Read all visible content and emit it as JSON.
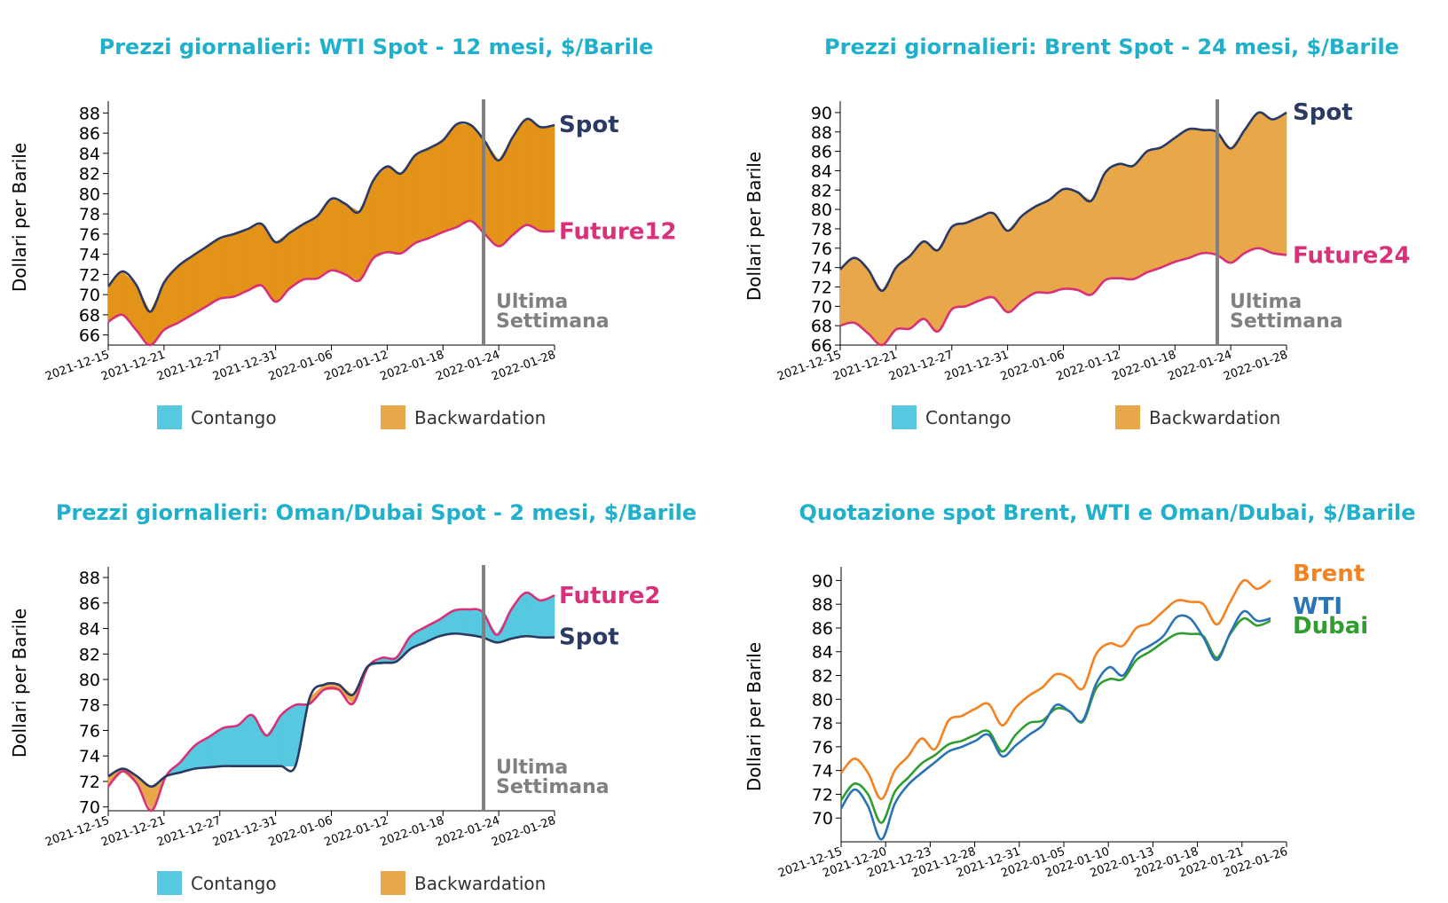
{
  "colors": {
    "title": "#1fb0cc",
    "spot": "#2b3a63",
    "future": "#d9307a",
    "contango": "#56c8df",
    "backwardation": "#e8a84a",
    "fill_backwardation_dark": "#e39318",
    "week_line": "#808080",
    "brent": "#f5821f",
    "wti": "#2a74b5",
    "dubai": "#2f9e2f"
  },
  "legend": {
    "contango": "Contango",
    "backwardation": "Backwardation"
  },
  "chart_data": [
    {
      "type": "area",
      "title": "Prezzi giornalieri: WTI Spot - 12 mesi, $/Barile",
      "ylabel": "Dollari per Barile",
      "ylim": [
        65,
        89
      ],
      "yticks": [
        66,
        68,
        70,
        72,
        74,
        76,
        78,
        80,
        82,
        84,
        86,
        88
      ],
      "xticks": [
        "2021-12-15",
        "2021-12-21",
        "2021-12-27",
        "2021-12-31",
        "2022-01-06",
        "2022-01-12",
        "2022-01-18",
        "2022-01-24",
        "2022-01-28"
      ],
      "week_label": [
        "Ultima",
        "Settimana"
      ],
      "fill_style": "dark",
      "series": [
        {
          "name": "Spot",
          "values": [
            70.8,
            72.3,
            71.0,
            68.3,
            71.2,
            72.8,
            73.8,
            74.7,
            75.6,
            76.0,
            76.5,
            77.0,
            75.2,
            76.1,
            77.0,
            77.8,
            79.5,
            79.0,
            78.2,
            81.3,
            82.7,
            82.0,
            83.8,
            84.5,
            85.3,
            86.9,
            86.8,
            85.2,
            83.3,
            85.6,
            87.4,
            86.6,
            86.8
          ]
        },
        {
          "name": "Future12",
          "values": [
            67.3,
            68.0,
            66.5,
            65.0,
            66.5,
            67.2,
            68.0,
            68.8,
            69.6,
            69.8,
            70.4,
            70.9,
            69.3,
            70.6,
            71.5,
            71.6,
            72.4,
            72.0,
            71.4,
            73.6,
            74.2,
            74.1,
            75.1,
            75.6,
            76.2,
            76.7,
            77.3,
            76.0,
            74.8,
            75.9,
            76.9,
            76.3,
            76.3
          ]
        }
      ]
    },
    {
      "type": "area",
      "title": "Prezzi giornalieri: Brent Spot - 24 mesi, $/Barile",
      "ylabel": "Dollari per Barile",
      "ylim": [
        66,
        91
      ],
      "yticks": [
        66,
        68,
        70,
        72,
        74,
        76,
        78,
        80,
        82,
        84,
        86,
        88,
        90
      ],
      "xticks": [
        "2021-12-15",
        "2021-12-21",
        "2021-12-27",
        "2021-12-31",
        "2022-01-06",
        "2022-01-12",
        "2022-01-18",
        "2022-01-24",
        "2022-01-28"
      ],
      "week_label": [
        "Ultima",
        "Settimana"
      ],
      "fill_style": "light",
      "series": [
        {
          "name": "Spot",
          "values": [
            73.8,
            75.0,
            73.8,
            71.6,
            74.0,
            75.2,
            76.7,
            75.8,
            78.2,
            78.6,
            79.2,
            79.6,
            77.8,
            79.3,
            80.3,
            81.0,
            82.1,
            81.8,
            80.9,
            83.8,
            84.7,
            84.5,
            86.0,
            86.4,
            87.4,
            88.3,
            88.2,
            88.0,
            86.3,
            88.2,
            90.0,
            89.3,
            90.0
          ]
        },
        {
          "name": "Future24",
          "values": [
            68.0,
            68.3,
            67.2,
            66.0,
            67.6,
            67.7,
            68.7,
            67.4,
            69.7,
            70.0,
            70.6,
            70.9,
            69.4,
            70.5,
            71.4,
            71.4,
            71.8,
            71.7,
            71.2,
            72.7,
            72.9,
            72.8,
            73.5,
            74.0,
            74.6,
            75.0,
            75.5,
            75.3,
            74.5,
            75.5,
            76.0,
            75.5,
            75.3
          ]
        }
      ]
    },
    {
      "type": "area",
      "title": "Prezzi giornalieri: Oman/Dubai Spot - 2 mesi, $/Barile",
      "ylabel": "Dollari per Barile",
      "ylim": [
        69.7,
        88.7
      ],
      "yticks": [
        70,
        72,
        74,
        76,
        78,
        80,
        82,
        84,
        86,
        88
      ],
      "xticks": [
        "2021-12-15",
        "2021-12-21",
        "2021-12-27",
        "2021-12-31",
        "2022-01-06",
        "2022-01-12",
        "2022-01-18",
        "2022-01-24",
        "2022-01-28"
      ],
      "week_label": [
        "Ultima",
        "Settimana"
      ],
      "fill_style": "light",
      "series": [
        {
          "name": "Spot",
          "values": [
            72.4,
            73.0,
            72.4,
            71.6,
            72.4,
            72.7,
            73.0,
            73.1,
            73.2,
            73.2,
            73.2,
            73.2,
            73.2,
            73.2,
            78.6,
            79.6,
            79.6,
            78.8,
            81.0,
            81.3,
            81.4,
            82.4,
            82.9,
            83.4,
            83.6,
            83.5,
            83.3,
            82.9,
            83.2,
            83.4,
            83.3,
            83.3
          ]
        },
        {
          "name": "Future2",
          "values": [
            71.6,
            72.8,
            71.8,
            69.7,
            72.4,
            73.5,
            74.8,
            75.5,
            76.2,
            76.4,
            77.2,
            75.6,
            77.2,
            78.0,
            78.1,
            79.2,
            79.2,
            78.1,
            80.9,
            81.7,
            81.7,
            83.4,
            84.1,
            84.7,
            85.4,
            85.5,
            85.3,
            83.5,
            85.5,
            86.8,
            86.2,
            86.6
          ]
        }
      ]
    },
    {
      "type": "line",
      "title": "Quotazione spot Brent, WTI e Oman/Dubai, $/Barile",
      "ylabel": "Dollari per Barile",
      "ylim": [
        68,
        91
      ],
      "yticks": [
        70,
        72,
        74,
        76,
        78,
        80,
        82,
        84,
        86,
        88,
        90
      ],
      "xticks": [
        "2021-12-15",
        "2021-12-20",
        "2021-12-23",
        "2021-12-28",
        "2021-12-31",
        "2022-01-05",
        "2022-01-10",
        "2022-01-13",
        "2022-01-18",
        "2022-01-21",
        "2022-01-26"
      ],
      "series": [
        {
          "name": "Brent",
          "values": [
            73.8,
            75.0,
            73.8,
            71.6,
            74.0,
            75.2,
            76.7,
            75.8,
            78.2,
            78.6,
            79.2,
            79.6,
            77.8,
            79.3,
            80.3,
            81.0,
            82.1,
            81.8,
            80.9,
            83.8,
            84.7,
            84.5,
            86.0,
            86.4,
            87.4,
            88.3,
            88.2,
            88.0,
            86.3,
            88.2,
            90.0,
            89.3,
            90.0
          ]
        },
        {
          "name": "WTI",
          "values": [
            70.8,
            72.4,
            71.0,
            68.2,
            71.2,
            72.8,
            73.8,
            74.7,
            75.6,
            76.0,
            76.5,
            77.0,
            75.2,
            76.1,
            77.0,
            77.8,
            79.5,
            79.0,
            78.2,
            81.3,
            82.7,
            82.0,
            83.8,
            84.5,
            85.3,
            86.9,
            86.8,
            85.2,
            83.3,
            85.6,
            87.4,
            86.6,
            86.8
          ]
        },
        {
          "name": "Dubai",
          "values": [
            71.5,
            72.9,
            72.0,
            69.6,
            72.2,
            73.4,
            74.6,
            75.3,
            76.2,
            76.5,
            77.0,
            77.3,
            75.6,
            77.0,
            78.0,
            78.2,
            79.2,
            79.0,
            78.1,
            80.9,
            81.7,
            81.7,
            83.3,
            84.0,
            84.8,
            85.5,
            85.5,
            85.3,
            83.5,
            85.5,
            86.8,
            86.2,
            86.6
          ]
        }
      ]
    }
  ]
}
